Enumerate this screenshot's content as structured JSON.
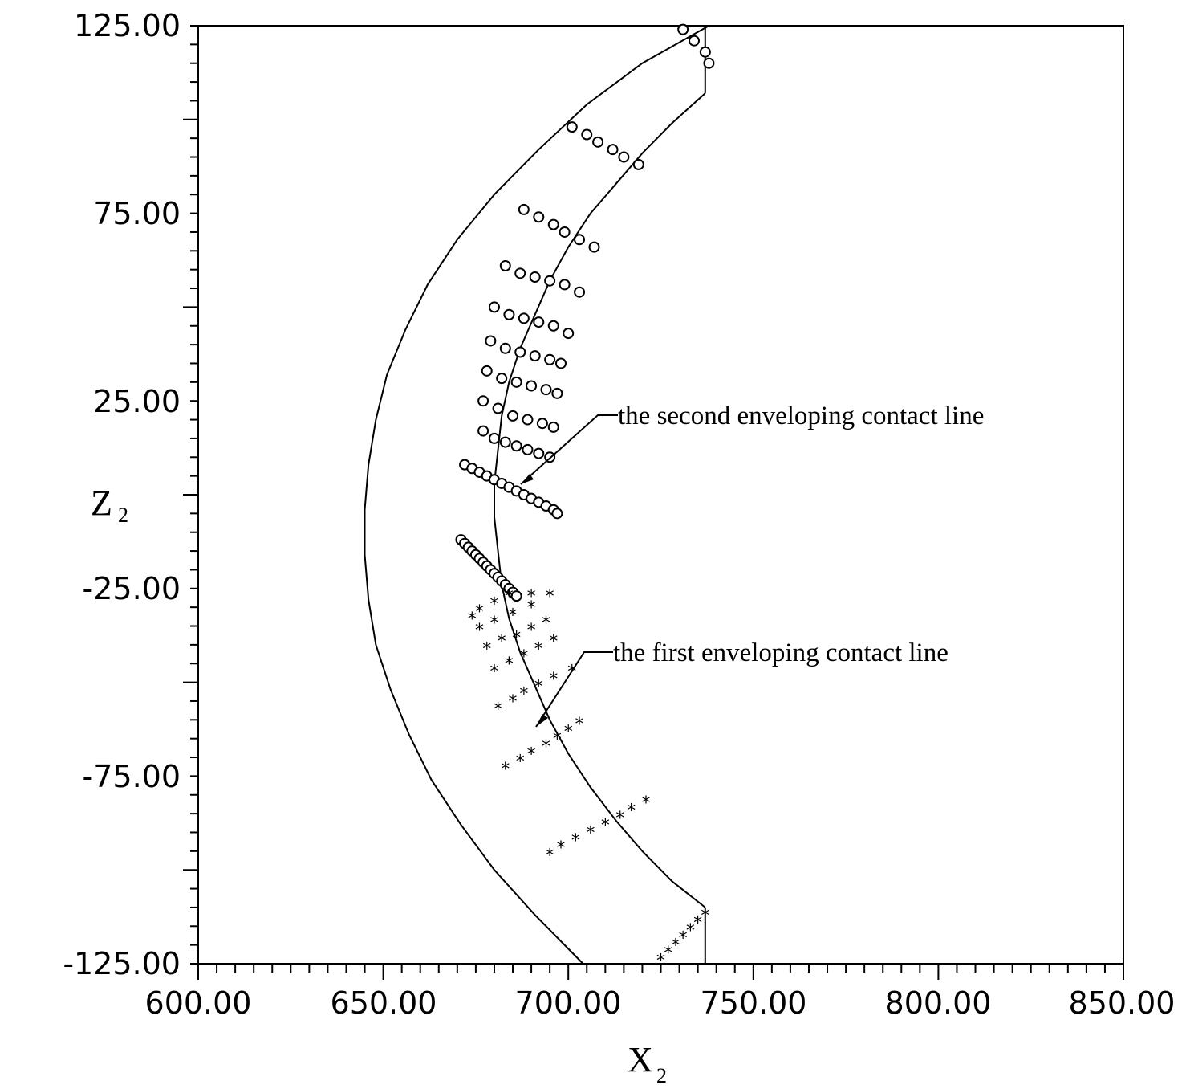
{
  "chart_data": {
    "type": "scatter",
    "xlabel": "X",
    "xlabel_sub": "2",
    "ylabel": "Z",
    "ylabel_sub": "2",
    "xlim": [
      600,
      850
    ],
    "ylim": [
      -125,
      125
    ],
    "x_ticks": [
      "600.00",
      "650.00",
      "700.00",
      "750.00",
      "800.00",
      "850.00"
    ],
    "y_ticks": [
      "125.00",
      "75.00",
      "25.00",
      "-25.00",
      "-75.00",
      "-125.00"
    ],
    "grid": false,
    "boundary": {
      "inner_arc": [
        [
          738,
          125
        ],
        [
          720,
          115
        ],
        [
          705,
          104
        ],
        [
          692,
          92
        ],
        [
          680,
          80
        ],
        [
          670,
          68
        ],
        [
          662,
          56
        ],
        [
          656,
          44
        ],
        [
          651,
          32
        ],
        [
          648,
          20
        ],
        [
          646,
          8
        ],
        [
          645,
          -4
        ],
        [
          645,
          -16
        ],
        [
          646,
          -28
        ],
        [
          648,
          -40
        ],
        [
          652,
          -52
        ],
        [
          657,
          -64
        ],
        [
          663,
          -76
        ],
        [
          671,
          -88
        ],
        [
          680,
          -100
        ],
        [
          691,
          -112
        ],
        [
          704,
          -125
        ]
      ],
      "outer_arc": [
        [
          737,
          107
        ],
        [
          728,
          99
        ],
        [
          720,
          91
        ],
        [
          713,
          83
        ],
        [
          706,
          75
        ],
        [
          700,
          66
        ],
        [
          695,
          57
        ],
        [
          691,
          48
        ],
        [
          687,
          39
        ],
        [
          684,
          30
        ],
        [
          682,
          21
        ],
        [
          681,
          12
        ],
        [
          680,
          3
        ],
        [
          680,
          -6
        ],
        [
          681,
          -15
        ],
        [
          682,
          -24
        ],
        [
          684,
          -33
        ],
        [
          687,
          -42
        ],
        [
          691,
          -51
        ],
        [
          695,
          -60
        ],
        [
          700,
          -69
        ],
        [
          706,
          -78
        ],
        [
          713,
          -87
        ],
        [
          720,
          -95
        ],
        [
          728,
          -103
        ],
        [
          737,
          -110
        ]
      ],
      "right_edge": [
        [
          737,
          125
        ],
        [
          737,
          107
        ]
      ],
      "right_edge_bottom": [
        [
          737,
          -110
        ],
        [
          737,
          -125
        ]
      ]
    },
    "series": [
      {
        "marker": "circle",
        "lines": [
          {
            "x": [
              731,
              734,
              737,
              738
            ],
            "y": [
              124,
              121,
              118,
              115
            ]
          },
          {
            "x": [
              701,
              705,
              708,
              712,
              715,
              719
            ],
            "y": [
              98,
              96,
              94,
              92,
              90,
              88
            ]
          },
          {
            "x": [
              688,
              692,
              696,
              699,
              703,
              707
            ],
            "y": [
              76,
              74,
              72,
              70,
              68,
              66
            ]
          },
          {
            "x": [
              683,
              687,
              691,
              695,
              699,
              703
            ],
            "y": [
              61,
              59,
              58,
              57,
              56,
              54
            ]
          },
          {
            "x": [
              680,
              684,
              688,
              692,
              696,
              700
            ],
            "y": [
              50,
              48,
              47,
              46,
              45,
              43
            ]
          },
          {
            "x": [
              679,
              683,
              687,
              691,
              695,
              698
            ],
            "y": [
              41,
              39,
              38,
              37,
              36,
              35
            ]
          },
          {
            "x": [
              678,
              682,
              686,
              690,
              694,
              697
            ],
            "y": [
              33,
              31,
              30,
              29,
              28,
              27
            ]
          },
          {
            "x": [
              677,
              681,
              685,
              689,
              693,
              696
            ],
            "y": [
              25,
              23,
              21,
              20,
              19,
              18
            ]
          },
          {
            "x": [
              677,
              680,
              683,
              686,
              689,
              692,
              695
            ],
            "y": [
              17,
              15,
              14,
              13,
              12,
              11,
              10
            ]
          },
          {
            "x": [
              672,
              674,
              676,
              678,
              680,
              682,
              684,
              686,
              688,
              690,
              692,
              694,
              696,
              697
            ],
            "y": [
              8,
              7,
              6,
              5,
              4,
              3,
              2,
              1,
              0,
              -1,
              -2,
              -3,
              -4,
              -5
            ]
          },
          {
            "x": [
              671,
              672,
              673,
              674,
              675,
              676,
              677,
              678,
              679,
              680,
              681,
              682,
              683,
              684,
              685,
              686
            ],
            "y": [
              -12,
              -13,
              -14,
              -15,
              -16,
              -17,
              -18,
              -19,
              -20,
              -21,
              -22,
              -23,
              -24,
              -25,
              -26,
              -27
            ]
          }
        ]
      },
      {
        "marker": "star",
        "lines": [
          {
            "x": [
              674,
              676,
              680,
              684,
              690
            ],
            "y": [
              -33,
              -31,
              -29,
              -27,
              -27
            ]
          },
          {
            "x": [
              676,
              680,
              685,
              690,
              695
            ],
            "y": [
              -36,
              -34,
              -32,
              -30,
              -27
            ]
          },
          {
            "x": [
              678,
              682,
              686,
              690,
              694
            ],
            "y": [
              -41,
              -39,
              -38,
              -36,
              -34
            ]
          },
          {
            "x": [
              680,
              684,
              688,
              692,
              696
            ],
            "y": [
              -47,
              -45,
              -43,
              -41,
              -39
            ]
          },
          {
            "x": [
              681,
              685,
              688,
              692,
              696,
              701
            ],
            "y": [
              -57,
              -55,
              -53,
              -51,
              -49,
              -47
            ]
          },
          {
            "x": [
              683,
              687,
              690,
              694,
              697,
              700,
              703
            ],
            "y": [
              -73,
              -71,
              -69,
              -67,
              -65,
              -63,
              -61
            ]
          },
          {
            "x": [
              695,
              698,
              702,
              706,
              710,
              714,
              717,
              721
            ],
            "y": [
              -96,
              -94,
              -92,
              -90,
              -88,
              -86,
              -84,
              -82
            ]
          },
          {
            "x": [
              725,
              727,
              729,
              731,
              733,
              735,
              737
            ],
            "y": [
              -124,
              -122,
              -120,
              -118,
              -116,
              -114,
              -112
            ]
          }
        ]
      }
    ],
    "annotations": [
      {
        "text": "the second enveloping contact line",
        "label_at": [
          740,
          28
        ],
        "points_to": [
          691,
          4
        ]
      },
      {
        "text": "the first enveloping contact line",
        "label_at": [
          730,
          -35
        ],
        "points_to": [
          696,
          -60
        ]
      }
    ]
  }
}
